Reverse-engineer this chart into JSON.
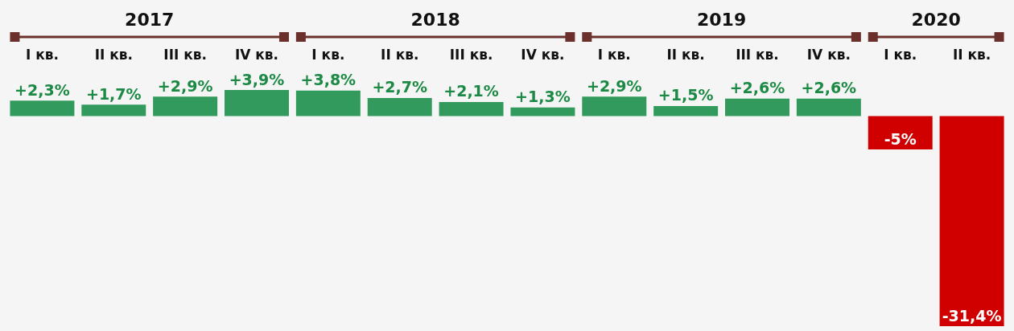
{
  "chart_data": {
    "type": "bar",
    "categories": [
      "I кв.",
      "II кв.",
      "III кв.",
      "IV кв.",
      "I кв.",
      "II кв.",
      "III кв.",
      "IV кв.",
      "I кв.",
      "II кв.",
      "III кв.",
      "IV кв.",
      "I кв.",
      "II кв."
    ],
    "values": [
      2.3,
      1.7,
      2.9,
      3.9,
      3.8,
      2.7,
      2.1,
      1.3,
      2.9,
      1.5,
      2.6,
      2.6,
      -5,
      -31.4
    ],
    "colors": [
      "#339a5d",
      "#339a5d",
      "#339a5d",
      "#339a5d",
      "#339a5d",
      "#339a5d",
      "#339a5d",
      "#339a5d",
      "#339a5d",
      "#339a5d",
      "#339a5d",
      "#339a5d",
      "#d10000",
      "#d10000"
    ],
    "value_labels": [
      "+2,3%",
      "+1,7%",
      "+2,9%",
      "+3,9%",
      "+3,8%",
      "+2,7%",
      "+2,1%",
      "+1,3%",
      "+2,9%",
      "+1,5%",
      "+2,6%",
      "+2,6%",
      "-5%",
      "-31,4%"
    ],
    "annotations": [
      "2017",
      "2018",
      "2019",
      "2020"
    ]
  }
}
